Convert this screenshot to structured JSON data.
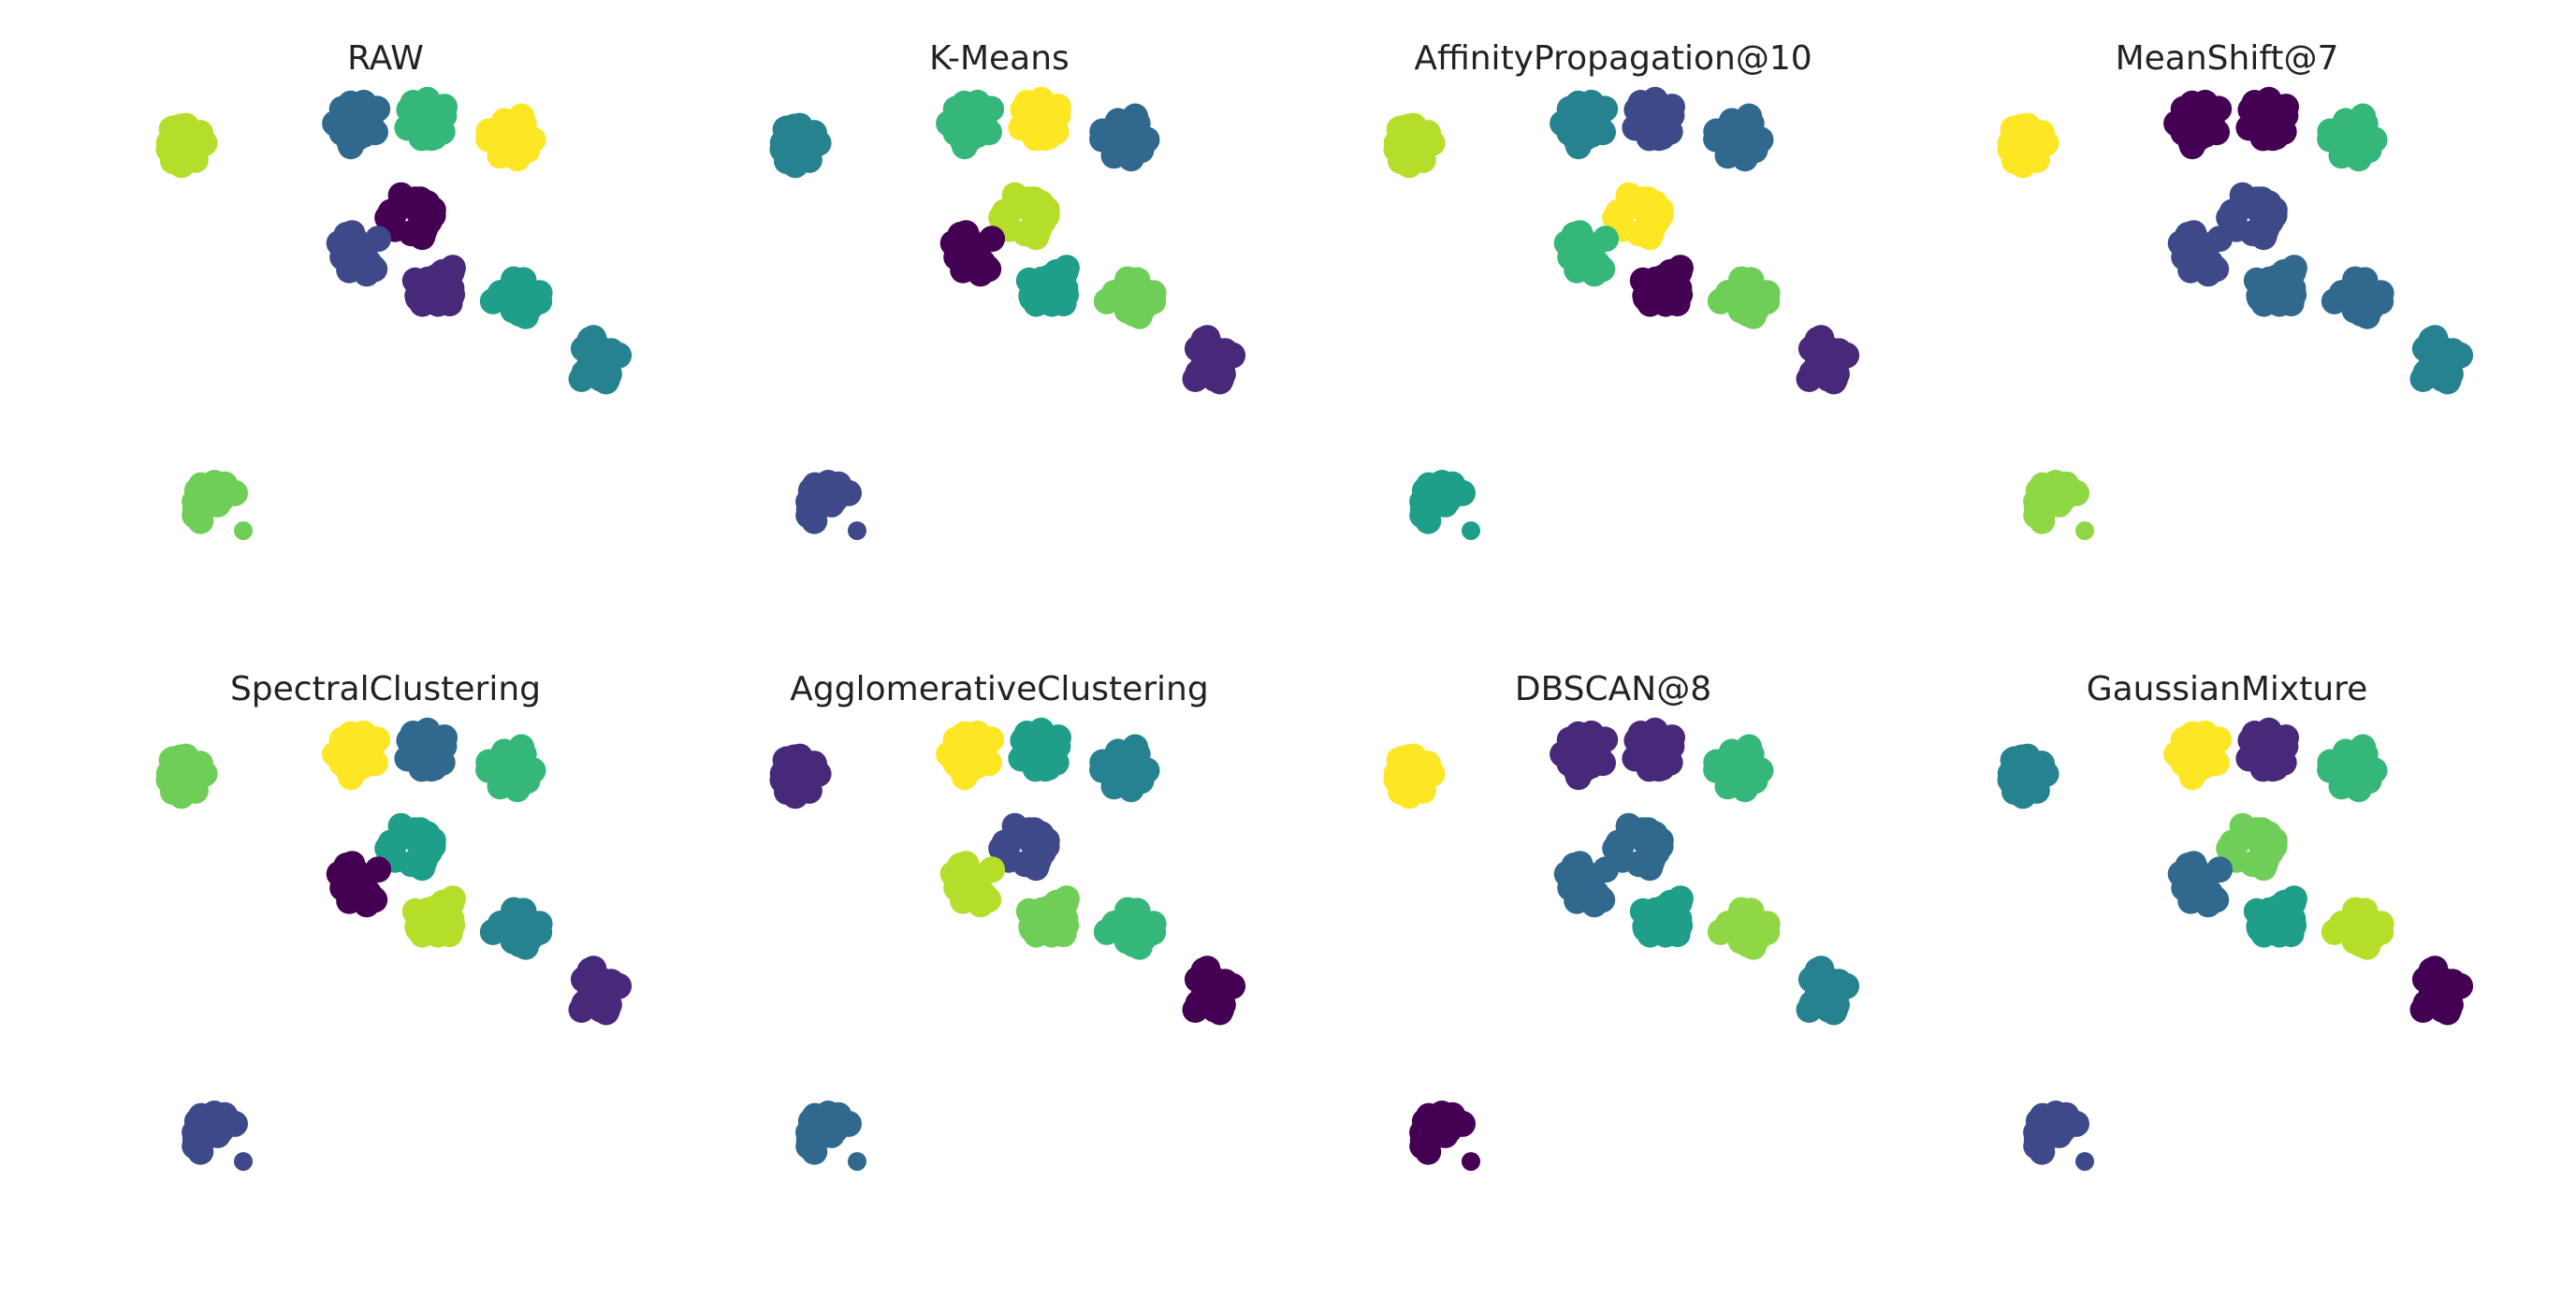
{
  "chart_data": [
    {
      "type": "scatter",
      "title": "RAW",
      "xlabel": "",
      "ylabel": "",
      "grid": false,
      "axes": "off",
      "clusters": [
        {
          "center": [
            1,
            9.2
          ],
          "color": "#b5de2b"
        },
        {
          "center": [
            3.6,
            9.6
          ],
          "color": "#31688e"
        },
        {
          "center": [
            4.6,
            9.7
          ],
          "color": "#35b779"
        },
        {
          "center": [
            5.9,
            9.4
          ],
          "color": "#fde725"
        },
        {
          "center": [
            4.4,
            7.9
          ],
          "color": "#440154"
        },
        {
          "center": [
            3.6,
            7.2
          ],
          "color": "#3e4989"
        },
        {
          "center": [
            4.8,
            6.6
          ],
          "color": "#482878"
        },
        {
          "center": [
            6.0,
            6.4
          ],
          "color": "#1f9e89"
        },
        {
          "center": [
            7.2,
            5.2
          ],
          "color": "#26828e"
        },
        {
          "center": [
            1.4,
            2.5
          ],
          "color": "#6ece58"
        }
      ]
    },
    {
      "type": "scatter",
      "title": "K-Means",
      "xlabel": "",
      "ylabel": "",
      "grid": false,
      "axes": "off",
      "clusters": [
        {
          "center": [
            1,
            9.2
          ],
          "color": "#26828e"
        },
        {
          "center": [
            3.6,
            9.6
          ],
          "color": "#35b779"
        },
        {
          "center": [
            4.6,
            9.7
          ],
          "color": "#fde725"
        },
        {
          "center": [
            5.9,
            9.4
          ],
          "color": "#31688e"
        },
        {
          "center": [
            4.4,
            7.9
          ],
          "color": "#b5de2b"
        },
        {
          "center": [
            3.6,
            7.2
          ],
          "color": "#440154"
        },
        {
          "center": [
            4.8,
            6.6
          ],
          "color": "#1f9e89"
        },
        {
          "center": [
            6.0,
            6.4
          ],
          "color": "#6ece58"
        },
        {
          "center": [
            7.2,
            5.2
          ],
          "color": "#482878"
        },
        {
          "center": [
            1.4,
            2.5
          ],
          "color": "#3e4989"
        }
      ]
    },
    {
      "type": "scatter",
      "title": "AffinityPropagation@10",
      "xlabel": "",
      "ylabel": "",
      "grid": false,
      "axes": "off",
      "clusters": [
        {
          "center": [
            1,
            9.2
          ],
          "color": "#b5de2b"
        },
        {
          "center": [
            3.6,
            9.6
          ],
          "color": "#26828e"
        },
        {
          "center": [
            4.6,
            9.7
          ],
          "color": "#3e4989"
        },
        {
          "center": [
            5.9,
            9.4
          ],
          "color": "#31688e"
        },
        {
          "center": [
            4.4,
            7.9
          ],
          "color": "#fde725"
        },
        {
          "center": [
            3.6,
            7.2
          ],
          "color": "#35b779"
        },
        {
          "center": [
            4.8,
            6.6
          ],
          "color": "#440154"
        },
        {
          "center": [
            6.0,
            6.4
          ],
          "color": "#6ece58"
        },
        {
          "center": [
            7.2,
            5.2
          ],
          "color": "#482878"
        },
        {
          "center": [
            1.4,
            2.5
          ],
          "color": "#1f9e89"
        }
      ]
    },
    {
      "type": "scatter",
      "title": "MeanShift@7",
      "xlabel": "",
      "ylabel": "",
      "grid": false,
      "axes": "off",
      "clusters": [
        {
          "center": [
            1,
            9.2
          ],
          "color": "#fde725"
        },
        {
          "center": [
            3.6,
            9.6
          ],
          "color": "#440154"
        },
        {
          "center": [
            4.6,
            9.7
          ],
          "color": "#440154"
        },
        {
          "center": [
            5.9,
            9.4
          ],
          "color": "#35b779"
        },
        {
          "center": [
            4.4,
            7.9
          ],
          "color": "#3e4989"
        },
        {
          "center": [
            3.6,
            7.2
          ],
          "color": "#3e4989"
        },
        {
          "center": [
            4.8,
            6.6
          ],
          "color": "#31688e"
        },
        {
          "center": [
            6.0,
            6.4
          ],
          "color": "#31688e"
        },
        {
          "center": [
            7.2,
            5.2
          ],
          "color": "#26828e"
        },
        {
          "center": [
            1.4,
            2.5
          ],
          "color": "#8fd744"
        }
      ]
    },
    {
      "type": "scatter",
      "title": "SpectralClustering",
      "xlabel": "",
      "ylabel": "",
      "grid": false,
      "axes": "off",
      "clusters": [
        {
          "center": [
            1,
            9.2
          ],
          "color": "#6ece58"
        },
        {
          "center": [
            3.6,
            9.6
          ],
          "color": "#fde725"
        },
        {
          "center": [
            4.6,
            9.7
          ],
          "color": "#31688e"
        },
        {
          "center": [
            5.9,
            9.4
          ],
          "color": "#35b779"
        },
        {
          "center": [
            4.4,
            7.9
          ],
          "color": "#1f9e89"
        },
        {
          "center": [
            3.6,
            7.2
          ],
          "color": "#440154"
        },
        {
          "center": [
            4.8,
            6.6
          ],
          "color": "#b5de2b"
        },
        {
          "center": [
            6.0,
            6.4
          ],
          "color": "#26828e"
        },
        {
          "center": [
            7.2,
            5.2
          ],
          "color": "#482878"
        },
        {
          "center": [
            1.4,
            2.5
          ],
          "color": "#3e4989"
        }
      ]
    },
    {
      "type": "scatter",
      "title": "AgglomerativeClustering",
      "xlabel": "",
      "ylabel": "",
      "grid": false,
      "axes": "off",
      "clusters": [
        {
          "center": [
            1,
            9.2
          ],
          "color": "#482878"
        },
        {
          "center": [
            3.6,
            9.6
          ],
          "color": "#fde725"
        },
        {
          "center": [
            4.6,
            9.7
          ],
          "color": "#1f9e89"
        },
        {
          "center": [
            5.9,
            9.4
          ],
          "color": "#26828e"
        },
        {
          "center": [
            4.4,
            7.9
          ],
          "color": "#3e4989"
        },
        {
          "center": [
            3.6,
            7.2
          ],
          "color": "#b5de2b"
        },
        {
          "center": [
            4.8,
            6.6
          ],
          "color": "#6ece58"
        },
        {
          "center": [
            6.0,
            6.4
          ],
          "color": "#35b779"
        },
        {
          "center": [
            7.2,
            5.2
          ],
          "color": "#440154"
        },
        {
          "center": [
            1.4,
            2.5
          ],
          "color": "#31688e"
        }
      ]
    },
    {
      "type": "scatter",
      "title": "DBSCAN@8",
      "xlabel": "",
      "ylabel": "",
      "grid": false,
      "axes": "off",
      "clusters": [
        {
          "center": [
            1,
            9.2
          ],
          "color": "#fde725"
        },
        {
          "center": [
            3.6,
            9.6
          ],
          "color": "#482878"
        },
        {
          "center": [
            4.6,
            9.7
          ],
          "color": "#482878"
        },
        {
          "center": [
            5.9,
            9.4
          ],
          "color": "#35b779"
        },
        {
          "center": [
            4.4,
            7.9
          ],
          "color": "#31688e"
        },
        {
          "center": [
            3.6,
            7.2
          ],
          "color": "#31688e"
        },
        {
          "center": [
            4.8,
            6.6
          ],
          "color": "#1f9e89"
        },
        {
          "center": [
            6.0,
            6.4
          ],
          "color": "#8fd744"
        },
        {
          "center": [
            7.2,
            5.2
          ],
          "color": "#26828e"
        },
        {
          "center": [
            1.4,
            2.5
          ],
          "color": "#440154"
        }
      ]
    },
    {
      "type": "scatter",
      "title": "GaussianMixture",
      "xlabel": "",
      "ylabel": "",
      "grid": false,
      "axes": "off",
      "clusters": [
        {
          "center": [
            1,
            9.2
          ],
          "color": "#26828e"
        },
        {
          "center": [
            3.6,
            9.6
          ],
          "color": "#fde725"
        },
        {
          "center": [
            4.6,
            9.7
          ],
          "color": "#482878"
        },
        {
          "center": [
            5.9,
            9.4
          ],
          "color": "#35b779"
        },
        {
          "center": [
            4.4,
            7.9
          ],
          "color": "#6ece58"
        },
        {
          "center": [
            3.6,
            7.2
          ],
          "color": "#31688e"
        },
        {
          "center": [
            4.8,
            6.6
          ],
          "color": "#1f9e89"
        },
        {
          "center": [
            6.0,
            6.4
          ],
          "color": "#b5de2b"
        },
        {
          "center": [
            7.2,
            5.2
          ],
          "color": "#440154"
        },
        {
          "center": [
            1.4,
            2.5
          ],
          "color": "#3e4989"
        }
      ]
    }
  ]
}
